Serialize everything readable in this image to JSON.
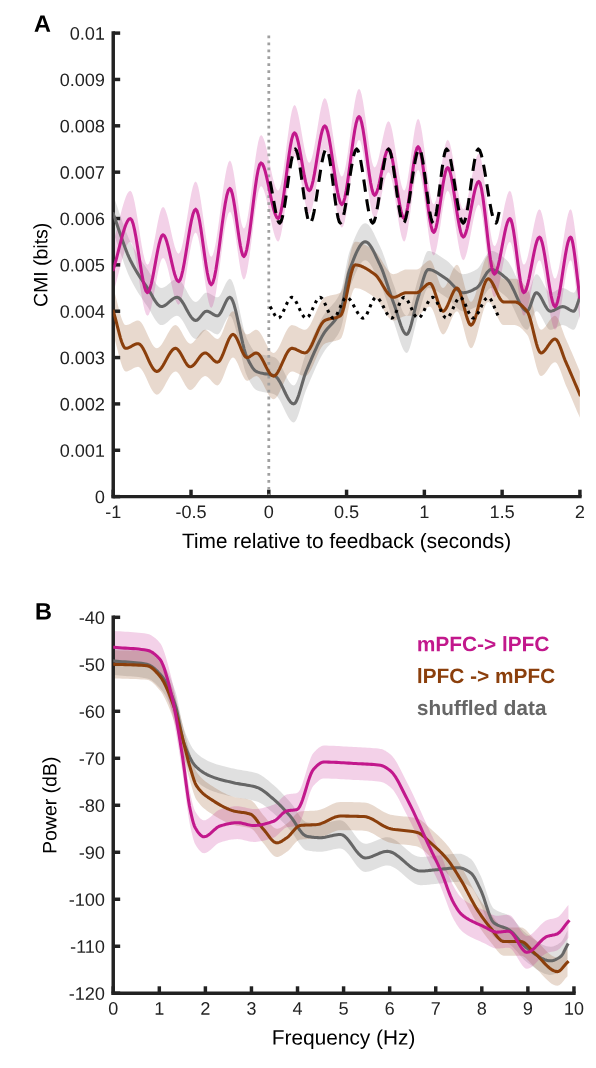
{
  "chart_data": [
    {
      "type": "line",
      "xlabel": "Time relative to feedback (seconds)",
      "ylabel": "CMI (bits)",
      "annotations": [
        "A"
      ],
      "xlim": [
        -1,
        2
      ],
      "xticks": [
        -1,
        -0.5,
        0,
        0.5,
        1,
        1.5,
        2
      ],
      "ylim": [
        0,
        0.01
      ],
      "yticks": [
        0,
        0.001,
        0.002,
        0.003,
        0.004,
        0.005,
        0.006,
        0.007,
        0.008,
        0.009,
        0.01
      ],
      "grid": false,
      "legend": false,
      "ref_lines": [
        {
          "axis": "x",
          "value": 0,
          "color": "#a0a0a0",
          "line_style": "dotted"
        }
      ],
      "series": [
        {
          "color": "#666666",
          "x": [
            -1,
            -0.89,
            -0.78,
            -0.69,
            -0.59,
            -0.47,
            -0.4,
            -0.33,
            -0.25,
            -0.14,
            -0.08,
            0.04,
            0.16,
            0.24,
            0.35,
            0.46,
            0.52,
            0.62,
            0.715,
            0.8,
            0.886,
            0.96,
            1.025,
            1.14,
            1.25,
            1.335,
            1.43,
            1.53,
            1.66,
            1.72,
            1.81,
            1.89,
            1.96,
            2.0
          ],
          "values": [
            0.0061,
            0.0051,
            0.0045,
            0.0041,
            0.0043,
            0.0038,
            0.004,
            0.0039,
            0.0043,
            0.003,
            0.0027,
            0.0026,
            0.002,
            0.0027,
            0.0035,
            0.004,
            0.0049,
            0.0055,
            0.005,
            0.0042,
            0.0035,
            0.0043,
            0.0049,
            0.0047,
            0.0044,
            0.0045,
            0.0049,
            0.0047,
            0.004,
            0.0044,
            0.004,
            0.0041,
            0.004,
            0.0043
          ],
          "lower": [
            0.0057,
            0.0047,
            0.0041,
            0.0037,
            0.0039,
            0.0034,
            0.0036,
            0.0035,
            0.0039,
            0.0026,
            0.0023,
            0.0022,
            0.0016,
            0.0023,
            0.0031,
            0.0036,
            0.0045,
            0.0051,
            0.0046,
            0.0038,
            0.0031,
            0.0039,
            0.0045,
            0.0043,
            0.004,
            0.0041,
            0.0045,
            0.0043,
            0.0036,
            0.004,
            0.0036,
            0.0037,
            0.0036,
            0.0039
          ],
          "upper": [
            0.0065,
            0.0055,
            0.0049,
            0.0045,
            0.0047,
            0.0042,
            0.0044,
            0.0043,
            0.0047,
            0.0034,
            0.0031,
            0.003,
            0.0024,
            0.0031,
            0.0039,
            0.0044,
            0.0053,
            0.0059,
            0.0054,
            0.0046,
            0.0039,
            0.0047,
            0.0053,
            0.0051,
            0.0048,
            0.0049,
            0.0053,
            0.0051,
            0.0044,
            0.0048,
            0.0044,
            0.0045,
            0.0044,
            0.0047
          ]
        },
        {
          "color": "#8b3f0c",
          "x": [
            -1,
            -0.92,
            -0.84,
            -0.72,
            -0.6,
            -0.505,
            -0.41,
            -0.33,
            -0.23,
            -0.14,
            -0.08,
            0.03,
            0.148,
            0.233,
            0.36,
            0.46,
            0.555,
            0.68,
            0.8,
            0.886,
            0.95,
            1.036,
            1.12,
            1.21,
            1.3,
            1.41,
            1.51,
            1.58,
            1.66,
            1.75,
            1.84,
            1.91,
            2.0
          ],
          "values": [
            0.004,
            0.0032,
            0.0033,
            0.0027,
            0.0032,
            0.0028,
            0.0031,
            0.0029,
            0.0035,
            0.003,
            0.0031,
            0.0026,
            0.0032,
            0.0031,
            0.0038,
            0.0039,
            0.005,
            0.0048,
            0.0043,
            0.0044,
            0.0044,
            0.0046,
            0.004,
            0.0045,
            0.0037,
            0.0047,
            0.0042,
            0.0042,
            0.004,
            0.0031,
            0.0034,
            0.0029,
            0.0022
          ],
          "lower": [
            0.0035,
            0.0027,
            0.0028,
            0.0022,
            0.0027,
            0.0023,
            0.0026,
            0.0024,
            0.003,
            0.0025,
            0.0026,
            0.0021,
            0.0027,
            0.0026,
            0.0033,
            0.0034,
            0.0045,
            0.0043,
            0.0038,
            0.0039,
            0.0039,
            0.0041,
            0.0035,
            0.004,
            0.0032,
            0.0042,
            0.0037,
            0.0037,
            0.0035,
            0.0026,
            0.0029,
            0.0024,
            0.0017
          ],
          "upper": [
            0.0045,
            0.0037,
            0.0038,
            0.0032,
            0.0037,
            0.0033,
            0.0036,
            0.0034,
            0.004,
            0.0035,
            0.0036,
            0.0031,
            0.0037,
            0.0036,
            0.0043,
            0.0044,
            0.0055,
            0.0053,
            0.0048,
            0.0049,
            0.0049,
            0.0051,
            0.0045,
            0.005,
            0.0042,
            0.0052,
            0.0047,
            0.0047,
            0.0045,
            0.0036,
            0.0039,
            0.0034,
            0.0027
          ]
        },
        {
          "color": "#c2188c",
          "x": [
            -1,
            -0.89,
            -0.78,
            -0.68,
            -0.58,
            -0.47,
            -0.37,
            -0.25,
            -0.16,
            -0.05,
            0.06,
            0.165,
            0.26,
            0.36,
            0.47,
            0.58,
            0.68,
            0.77,
            0.87,
            0.96,
            1.06,
            1.15,
            1.25,
            1.35,
            1.45,
            1.55,
            1.64,
            1.74,
            1.84,
            1.94,
            2.0
          ],
          "values": [
            0.0049,
            0.006,
            0.0044,
            0.00565,
            0.00464,
            0.0062,
            0.00457,
            0.00665,
            0.00518,
            0.0072,
            0.006,
            0.00785,
            0.0066,
            0.008,
            0.0063,
            0.0082,
            0.0065,
            0.0075,
            0.006,
            0.00755,
            0.0057,
            0.0071,
            0.0056,
            0.0068,
            0.0048,
            0.006,
            0.0044,
            0.0056,
            0.0041,
            0.0056,
            0.0043
          ],
          "lower": [
            0.0044,
            0.0055,
            0.0039,
            0.00515,
            0.00414,
            0.0057,
            0.00407,
            0.00615,
            0.00468,
            0.0067,
            0.0055,
            0.00735,
            0.0061,
            0.0075,
            0.0058,
            0.0077,
            0.006,
            0.007,
            0.0055,
            0.00705,
            0.0052,
            0.0066,
            0.0051,
            0.0063,
            0.0043,
            0.0055,
            0.0039,
            0.0051,
            0.0036,
            0.0051,
            0.0038
          ],
          "upper": [
            0.0055,
            0.0066,
            0.005,
            0.00625,
            0.00524,
            0.0068,
            0.00517,
            0.00725,
            0.00578,
            0.0078,
            0.0066,
            0.00845,
            0.0072,
            0.0086,
            0.0069,
            0.0088,
            0.0071,
            0.0081,
            0.0066,
            0.00815,
            0.0063,
            0.0077,
            0.0062,
            0.0074,
            0.0054,
            0.0066,
            0.005,
            0.0062,
            0.0047,
            0.0062,
            0.0049
          ]
        },
        {
          "color": "#000000",
          "line_style": "dashed",
          "x": [
            0.008,
            0.07,
            0.17,
            0.265,
            0.37,
            0.46,
            0.565,
            0.668,
            0.77,
            0.865,
            0.967,
            1.057,
            1.143,
            1.25,
            1.347,
            1.46,
            1.485
          ],
          "values": [
            0.0068,
            0.0059,
            0.0075,
            0.0059,
            0.0075,
            0.0059,
            0.0075,
            0.0059,
            0.0075,
            0.0059,
            0.0075,
            0.0059,
            0.0075,
            0.0059,
            0.0075,
            0.0059,
            0.0062
          ]
        },
        {
          "color": "#000000",
          "line_style": "dotted",
          "x": [
            0.008,
            0.06,
            0.148,
            0.24,
            0.33,
            0.415,
            0.5,
            0.607,
            0.69,
            0.79,
            0.87,
            0.96,
            1.053,
            1.143,
            1.23,
            1.314,
            1.41,
            1.475
          ],
          "values": [
            0.0041,
            0.00385,
            0.0043,
            0.00385,
            0.0043,
            0.00385,
            0.0043,
            0.00385,
            0.0043,
            0.00385,
            0.0043,
            0.00385,
            0.0043,
            0.00385,
            0.0043,
            0.00385,
            0.0043,
            0.0039
          ]
        }
      ]
    },
    {
      "type": "line",
      "xlabel": "Frequency (Hz)",
      "ylabel": "Power (dB)",
      "annotations": [
        "B"
      ],
      "xlim": [
        0,
        10
      ],
      "xticks": [
        0,
        1,
        2,
        3,
        4,
        5,
        6,
        7,
        8,
        9,
        10
      ],
      "ylim": [
        -120,
        -40
      ],
      "yticks": [
        -120,
        -110,
        -100,
        -90,
        -80,
        -70,
        -60,
        -50,
        -40
      ],
      "grid": false,
      "legend": "top right",
      "series": [
        {
          "name": "shuffled data",
          "color": "#666666",
          "x": [
            0.02,
            0.73,
            1.05,
            1.35,
            1.53,
            1.78,
            2.11,
            2.61,
            3.12,
            3.48,
            3.84,
            4.2,
            4.49,
            4.93,
            5.47,
            5.95,
            6.67,
            7.03,
            7.5,
            7.76,
            7.97,
            8.26,
            8.59,
            8.98,
            9.49,
            9.71,
            9.86
          ],
          "values": [
            -49.3,
            -50,
            -52.5,
            -58.8,
            -66.6,
            -71.6,
            -73.8,
            -75.2,
            -76.2,
            -78.7,
            -82.3,
            -86.6,
            -86.9,
            -86.2,
            -91.2,
            -89.8,
            -94,
            -93.7,
            -93.3,
            -94.4,
            -97.9,
            -105,
            -106.5,
            -110.4,
            -113.1,
            -112.2,
            -109.7
          ],
          "lower": [
            -52.3,
            -53,
            -55.5,
            -61.8,
            -69.6,
            -74.6,
            -76.8,
            -78.2,
            -79.2,
            -81.7,
            -85.3,
            -89.6,
            -89.9,
            -89.2,
            -94.2,
            -92.8,
            -97,
            -96.7,
            -96.3,
            -97.4,
            -100.9,
            -108,
            -109.5,
            -113.4,
            -116.1,
            -115.2,
            -112.7
          ],
          "upper": [
            -46.3,
            -47,
            -49.5,
            -55.8,
            -63.6,
            -68.6,
            -70.8,
            -72.2,
            -73.2,
            -75.7,
            -79.3,
            -83.6,
            -83.9,
            -83.2,
            -88.2,
            -86.8,
            -91,
            -90.7,
            -90.3,
            -91.4,
            -94.9,
            -102,
            -103.5,
            -107.4,
            -110.1,
            -109.2,
            -106.7
          ]
        },
        {
          "name": "lPFC -> mPFC",
          "color": "#8b3f0c",
          "x": [
            0.02,
            0.73,
            1.01,
            1.31,
            1.49,
            1.67,
            1.81,
            2.18,
            2.61,
            2.98,
            3.26,
            3.55,
            3.77,
            4.06,
            4.42,
            4.93,
            5.44,
            6.02,
            6.6,
            6.89,
            7.25,
            7.54,
            7.9,
            8.19,
            8.48,
            8.85,
            9.14,
            9.64,
            9.86
          ],
          "values": [
            -50,
            -50.3,
            -52.5,
            -58.8,
            -65.2,
            -72,
            -75.9,
            -79.1,
            -81.2,
            -81.9,
            -85.1,
            -88,
            -86.9,
            -84.3,
            -84.1,
            -82.3,
            -82.4,
            -85,
            -85.8,
            -88,
            -91.5,
            -95.8,
            -102.2,
            -106.1,
            -109,
            -109,
            -111.4,
            -115.4,
            -113.4
          ],
          "lower": [
            -53,
            -53.3,
            -55.5,
            -61.8,
            -68.2,
            -75,
            -78.9,
            -82.1,
            -84.2,
            -84.9,
            -88.1,
            -91,
            -89.9,
            -87.3,
            -87.1,
            -85.3,
            -85.4,
            -88,
            -88.8,
            -91,
            -94.5,
            -98.8,
            -105.2,
            -109.1,
            -112,
            -112,
            -114.4,
            -118.4,
            -116.4
          ],
          "upper": [
            -47,
            -47.3,
            -49.5,
            -55.8,
            -62.2,
            -69,
            -72.9,
            -76.1,
            -78.2,
            -78.9,
            -82.1,
            -85,
            -83.9,
            -81.3,
            -81.1,
            -79.3,
            -79.4,
            -82,
            -82.8,
            -85,
            -88.5,
            -92.8,
            -99.2,
            -103.1,
            -106,
            -106,
            -108.4,
            -112.4,
            -110.4
          ]
        },
        {
          "name": "mPFC-> lPFC",
          "color": "#c2188c",
          "x": [
            0.02,
            0.73,
            1.01,
            1.27,
            1.49,
            1.67,
            1.78,
            1.97,
            2.32,
            2.69,
            3.05,
            3.48,
            3.77,
            3.99,
            4.35,
            4.57,
            5.22,
            5.8,
            6.02,
            6.38,
            6.89,
            7.1,
            7.39,
            7.57,
            8.04,
            8.33,
            8.58,
            8.98,
            9.42,
            9.63,
            9.88
          ],
          "values": [
            -46.4,
            -47,
            -48.9,
            -56.7,
            -68.8,
            -80.9,
            -84.8,
            -86.7,
            -84.4,
            -83.7,
            -84.3,
            -83.4,
            -81.2,
            -80.9,
            -72.3,
            -70.8,
            -71.1,
            -71.5,
            -72.7,
            -78.7,
            -89.4,
            -93.7,
            -100.8,
            -103.3,
            -105.8,
            -107,
            -106.8,
            -111.3,
            -107.9,
            -107.4,
            -104.7
          ],
          "lower": [
            -49.9,
            -50.5,
            -52.4,
            -60.2,
            -72.3,
            -84.4,
            -88.3,
            -90.2,
            -87.9,
            -87.2,
            -87.8,
            -86.9,
            -84.7,
            -84.4,
            -75.8,
            -74.3,
            -74.6,
            -75,
            -76.2,
            -82.2,
            -92.9,
            -97.2,
            -104.3,
            -106.8,
            -109.3,
            -110.5,
            -110.3,
            -114.8,
            -111.4,
            -110.9,
            -108.2
          ],
          "upper": [
            -42.9,
            -43.5,
            -45.4,
            -53.2,
            -65.3,
            -77.4,
            -81.3,
            -83.2,
            -80.9,
            -80.2,
            -80.8,
            -79.9,
            -77.7,
            -77.4,
            -68.8,
            -67.3,
            -67.6,
            -68,
            -69.2,
            -75.2,
            -85.9,
            -90.2,
            -97.3,
            -99.8,
            -102.3,
            -103.5,
            -103.3,
            -107.8,
            -104.4,
            -103.9,
            -101.2
          ]
        }
      ]
    }
  ]
}
